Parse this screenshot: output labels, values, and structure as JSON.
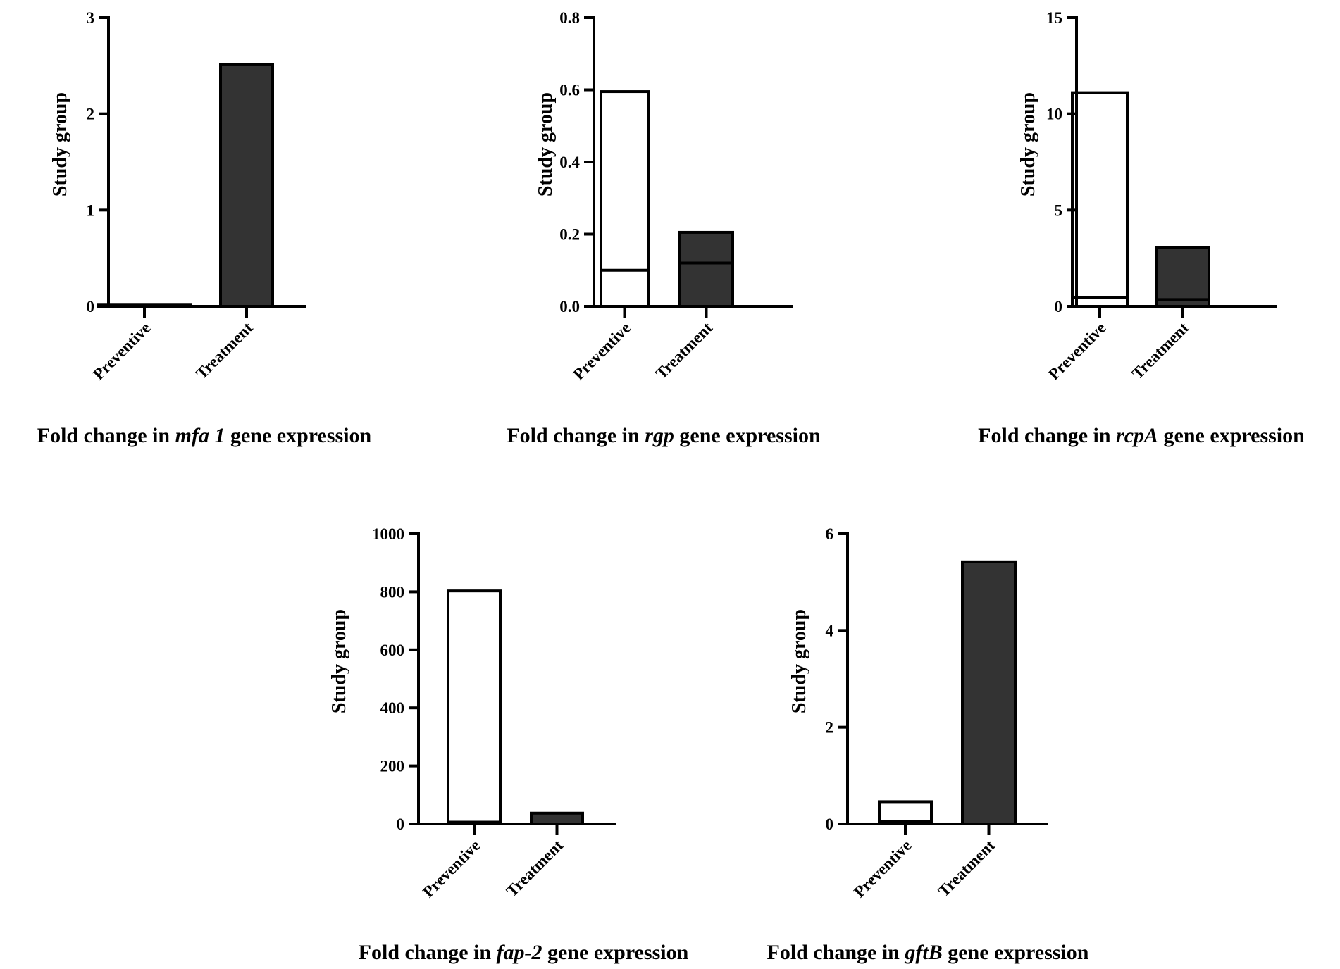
{
  "figure": {
    "colors": {
      "preventive": "#ffffff",
      "treatment": "#333333",
      "stroke": "#000000"
    }
  },
  "chart_data": [
    {
      "type": "bar",
      "title_prefix": "Fold change in ",
      "gene": "mfa 1",
      "title_suffix": " gene expression",
      "ylabel": "Study group",
      "categories": [
        "Preventive",
        "Treatment"
      ],
      "values": [
        0.02,
        2.51
      ],
      "medians": [
        null,
        null
      ],
      "ylim": [
        0,
        3
      ],
      "yticks": [
        0,
        1,
        2,
        3
      ],
      "ytick_labels": [
        "0",
        "1",
        "2",
        "3"
      ]
    },
    {
      "type": "bar",
      "title_prefix": "Fold change in ",
      "gene": "rgp",
      "title_suffix": " gene expression",
      "ylabel": "Study group",
      "categories": [
        "Preventive",
        "Treatment"
      ],
      "values": [
        0.595,
        0.205
      ],
      "medians": [
        0.1,
        0.12
      ],
      "ylim": [
        0,
        0.8
      ],
      "yticks": [
        0,
        0.2,
        0.4,
        0.6,
        0.8
      ],
      "ytick_labels": [
        "0.0",
        "0.2",
        "0.4",
        "0.6",
        "0.8"
      ]
    },
    {
      "type": "bar",
      "title_prefix": "Fold change in ",
      "gene": "rcpA",
      "title_suffix": " gene expression",
      "ylabel": "Study group",
      "categories": [
        "Preventive",
        "Treatment"
      ],
      "values": [
        11.1,
        3.05
      ],
      "medians": [
        0.45,
        0.35
      ],
      "ylim": [
        0,
        15
      ],
      "yticks": [
        0,
        5,
        10,
        15
      ],
      "ytick_labels": [
        "0",
        "5",
        "10",
        "15"
      ]
    },
    {
      "type": "bar",
      "title_prefix": "Fold change in ",
      "gene": "fap-2",
      "title_suffix": " gene expression",
      "ylabel": "Study group",
      "categories": [
        "Preventive",
        "Treatment"
      ],
      "values": [
        803,
        37
      ],
      "medians": [
        6,
        null
      ],
      "ylim": [
        0,
        1000
      ],
      "yticks": [
        0,
        200,
        400,
        600,
        800,
        1000
      ],
      "ytick_labels": [
        "0",
        "200",
        "400",
        "600",
        "800",
        "1000"
      ]
    },
    {
      "type": "bar",
      "title_prefix": "Fold change in ",
      "gene": "gftB",
      "title_suffix": " gene expression",
      "ylabel": "Study group",
      "categories": [
        "Preventive",
        "Treatment"
      ],
      "values": [
        0.46,
        5.42
      ],
      "medians": [
        0.05,
        null
      ],
      "ylim": [
        0,
        6
      ],
      "yticks": [
        0,
        2,
        4,
        6
      ],
      "ytick_labels": [
        "0",
        "2",
        "4",
        "6"
      ]
    }
  ]
}
